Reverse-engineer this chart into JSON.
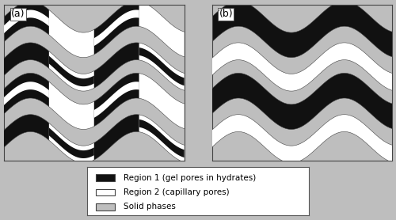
{
  "bg_color": "#bebebe",
  "white_color": "#ffffff",
  "black_color": "#111111",
  "fig_bg": "#bebebe",
  "legend_bg": "#ffffff",
  "label_a": "(a)",
  "label_b": "(b)",
  "legend_items": [
    {
      "label": "Region 1 (gel pores in hydrates)",
      "color": "#111111"
    },
    {
      "label": "Region 2 (capillary pores)",
      "color": "#ffffff"
    },
    {
      "label": "Solid phases",
      "color": "#bebebe"
    }
  ],
  "font_size_label": 9,
  "font_size_legend": 7.5,
  "amp": 0.1,
  "bw_black": 0.08,
  "bw_white_inner": 0.025,
  "bw_white_band": 0.055,
  "freq": 1.7,
  "centers_b": [
    0.84,
    0.6,
    0.38,
    0.14
  ],
  "colors_b": [
    "#111111",
    "#ffffff",
    "#111111",
    "#ffffff"
  ],
  "centers_a": [
    0.84,
    0.6,
    0.38,
    0.14
  ],
  "colors_a": [
    "#111111",
    "#ffffff",
    "#111111",
    "#ffffff"
  ],
  "n_segs_a": 4,
  "phase_b": 0.0,
  "phases_a": [
    0.0,
    0.0,
    0.0,
    0.0
  ],
  "seg_offsets_a": [
    0,
    1,
    0,
    1
  ]
}
